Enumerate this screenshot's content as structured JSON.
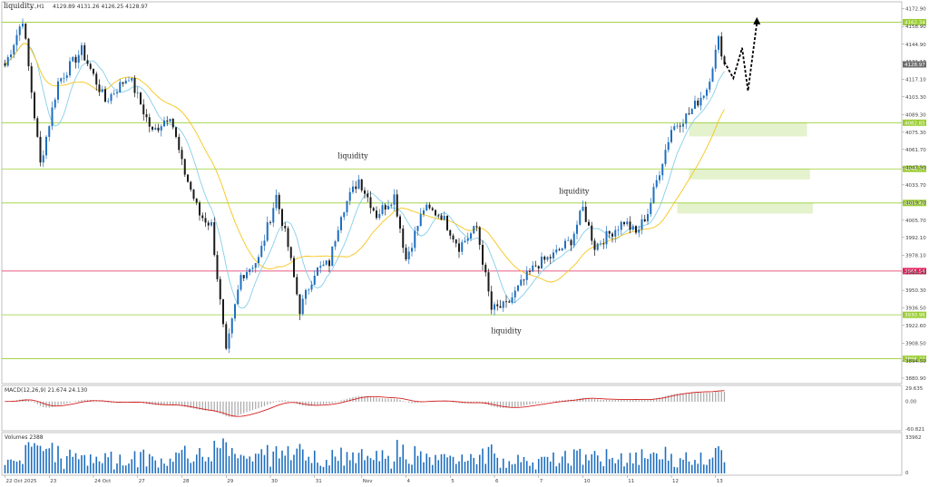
{
  "header": {
    "title": "liquidity",
    "symbol": "...,H1",
    "ohlc": "4129.89 4131.26 4126.25 4128.97"
  },
  "chart_data": [
    {
      "type": "candlestick",
      "title": "",
      "x_labels": [
        "22 Oct 2025",
        "23",
        "24 Oct",
        "27",
        "28",
        "29",
        "30",
        "31",
        "Nov",
        "4",
        "5",
        "6",
        "7",
        "10",
        "11",
        "12",
        "13"
      ],
      "y_ticks": [
        4172.9,
        4158.9,
        4144.9,
        4131.1,
        4117.1,
        4103.3,
        4089.3,
        4075.3,
        4061.7,
        4047.5,
        4033.7,
        4019.7,
        4005.7,
        3992.1,
        3978.1,
        3964.3,
        3950.3,
        3936.5,
        3922.6,
        3908.5,
        3894.5,
        3880.9
      ],
      "ylim": [
        3878,
        4177
      ],
      "current_price": "4128.97",
      "current_price_value": 4128.97,
      "levels": [
        {
          "value": 4162.34,
          "label": "4162.34",
          "color": "#9acd32"
        },
        {
          "value": 4082.85,
          "label": "4082.85",
          "color": "#9acd32"
        },
        {
          "value": 4046.34,
          "label": "4046.34",
          "color": "#9acd32"
        },
        {
          "value": 4019.4,
          "label": "4019.40",
          "color": "#9acd32"
        },
        {
          "value": 3965.54,
          "label": "3965.54",
          "color": "#e0245e"
        },
        {
          "value": 3930.96,
          "label": "3930.96",
          "color": "#9acd32"
        },
        {
          "value": 3896.23,
          "label": "3896.23",
          "color": "#9acd32"
        }
      ],
      "zones": [
        {
          "from": 4072,
          "to": 4082.85,
          "start_bar": 232,
          "end_bar": 272
        },
        {
          "from": 4038,
          "to": 4046.34,
          "start_bar": 232,
          "end_bar": 273
        },
        {
          "from": 4011,
          "to": 4019.4,
          "start_bar": 228,
          "end_bar": 274
        }
      ],
      "annotations": [
        {
          "text": "liquidity",
          "bar": 118,
          "price": 4052,
          "side": "above"
        },
        {
          "text": "liquidity",
          "bar": 193,
          "price": 4024,
          "side": "above"
        },
        {
          "text": "liquidity",
          "bar": 170,
          "price": 3922,
          "side": "below"
        }
      ],
      "projection": [
        [
          244,
          4131
        ],
        [
          247,
          4118
        ],
        [
          250,
          4142
        ],
        [
          252,
          4108
        ],
        [
          255,
          4162
        ]
      ],
      "ma_fast_color": "#87ceeb",
      "ma_slow_color": "#f5c518",
      "bull_color": "#1f6fbf",
      "bear_color": "#1a1a1a",
      "anchors": [
        [
          0,
          4128
        ],
        [
          6,
          4165
        ],
        [
          12,
          4050
        ],
        [
          18,
          4115
        ],
        [
          26,
          4140
        ],
        [
          34,
          4100
        ],
        [
          42,
          4120
        ],
        [
          50,
          4075
        ],
        [
          56,
          4090
        ],
        [
          60,
          4050
        ],
        [
          66,
          4010
        ],
        [
          70,
          4002
        ],
        [
          75,
          3900
        ],
        [
          80,
          3962
        ],
        [
          86,
          3975
        ],
        [
          92,
          4025
        ],
        [
          96,
          3985
        ],
        [
          100,
          3935
        ],
        [
          105,
          3965
        ],
        [
          110,
          3972
        ],
        [
          114,
          4012
        ],
        [
          120,
          4038
        ],
        [
          126,
          4010
        ],
        [
          132,
          4025
        ],
        [
          136,
          3975
        ],
        [
          142,
          4015
        ],
        [
          148,
          4010
        ],
        [
          154,
          3985
        ],
        [
          160,
          4000
        ],
        [
          165,
          3935
        ],
        [
          170,
          3938
        ],
        [
          175,
          3955
        ],
        [
          180,
          3970
        ],
        [
          186,
          3978
        ],
        [
          192,
          3990
        ],
        [
          196,
          4015
        ],
        [
          200,
          3985
        ],
        [
          205,
          3995
        ],
        [
          210,
          4005
        ],
        [
          214,
          3995
        ],
        [
          218,
          4012
        ],
        [
          222,
          4045
        ],
        [
          226,
          4078
        ],
        [
          232,
          4090
        ],
        [
          238,
          4110
        ],
        [
          242,
          4148
        ],
        [
          244,
          4131
        ]
      ]
    },
    {
      "type": "bar",
      "title": "MACD(12,26,9) 21.674 24.130",
      "macd_value": 21.674,
      "signal_value": 24.13,
      "y_ticks": [
        "29.635",
        "0.00",
        "-60.821"
      ],
      "ylim": [
        -60.821,
        29.635
      ],
      "hist_color": "#a8a8a8",
      "signal_color": "#d42020"
    },
    {
      "type": "bar",
      "title": "Volumes 2388",
      "y_ticks": [
        "33962",
        "0"
      ],
      "ylim": [
        0,
        33962
      ],
      "bar_color": "#1f6fbf"
    }
  ]
}
